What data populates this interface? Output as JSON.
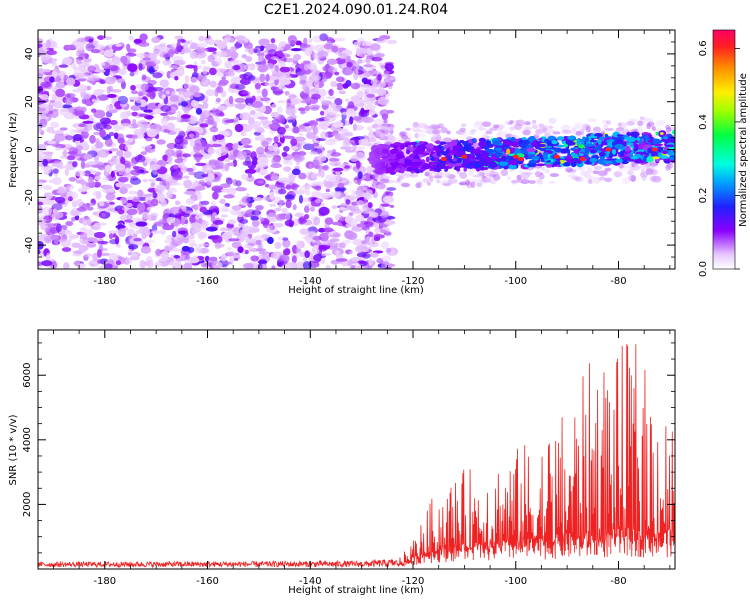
{
  "title": "C2E1.2024.090.01.24.R04",
  "chart_data": [
    {
      "type": "heatmap",
      "xlabel": "Height of straight line (km)",
      "ylabel": "Frequency (Hz)",
      "xlim": [
        -193,
        -69
      ],
      "ylim": [
        -50,
        50
      ],
      "x_ticks": [
        -180,
        -160,
        -140,
        -120,
        -100,
        -80
      ],
      "x_tick_labels": [
        "-180",
        "-160",
        "-140",
        "-120",
        "-100",
        "-80"
      ],
      "y_ticks": [
        -40,
        -20,
        0,
        20,
        40
      ],
      "y_tick_labels": [
        "-40",
        "-20",
        "0",
        "20",
        "40"
      ],
      "colorbar": {
        "label": "Normalized spectral amplitude",
        "range": [
          0,
          0.65
        ],
        "ticks": [
          0.0,
          0.2,
          0.4,
          0.6
        ],
        "tick_labels": [
          "0.0",
          "0.2",
          "0.4",
          "0.6"
        ]
      },
      "description_regions": [
        {
          "x_range": [
            -193,
            -125
          ],
          "y_range": [
            -50,
            47
          ],
          "amplitude": "low (0.0-0.15), broadband noise"
        },
        {
          "x_range": [
            -125,
            -69
          ],
          "y_range": [
            -12,
            8
          ],
          "amplitude": "up to ~0.6, narrow band centered near -3 Hz"
        }
      ],
      "grid": false
    },
    {
      "type": "line",
      "xlabel": "Height of straight line (km)",
      "ylabel": "SNR (10 * v/v)",
      "xlim": [
        -193,
        -69
      ],
      "ylim": [
        0,
        7400
      ],
      "x_ticks": [
        -180,
        -160,
        -140,
        -120,
        -100,
        -80
      ],
      "x_tick_labels": [
        "-180",
        "-160",
        "-140",
        "-120",
        "-100",
        "-80"
      ],
      "y_ticks": [
        2000,
        4000,
        6000
      ],
      "y_tick_labels": [
        "2000",
        "4000",
        "6000"
      ],
      "series": [
        {
          "color": "#ee2222",
          "envelope_x": [
            -193,
            -130,
            -123,
            -121,
            -118,
            -115,
            -110,
            -105,
            -100,
            -95,
            -90,
            -85,
            -80,
            -77,
            -75,
            -72,
            -69
          ],
          "envelope_max": [
            220,
            250,
            320,
            650,
            1600,
            2700,
            3100,
            3500,
            3800,
            4200,
            5000,
            6700,
            6800,
            7400,
            6400,
            5600,
            4600
          ],
          "baseline": [
            80,
            100,
            120,
            200,
            400,
            500,
            600,
            600,
            700,
            700,
            800,
            800,
            900,
            900,
            900,
            900,
            900
          ]
        }
      ],
      "grid": false
    }
  ]
}
